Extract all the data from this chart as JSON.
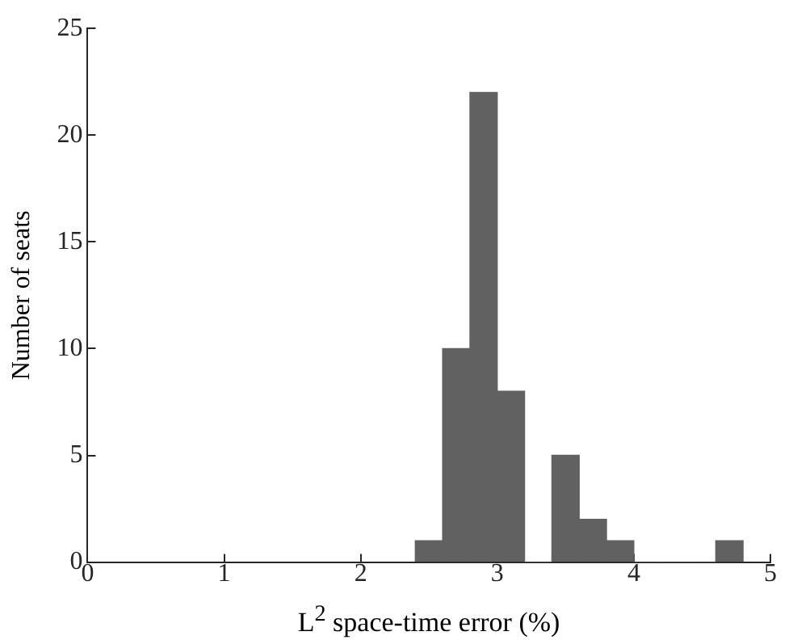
{
  "chart_data": {
    "type": "histogram",
    "xlabel": "L$^{2}$ space-time error (%)",
    "ylabel": "Number of seats",
    "bins": [
      2.4,
      2.6,
      2.8,
      3.0,
      3.2,
      3.4,
      3.6,
      3.8,
      4.0,
      4.2,
      4.4,
      4.6,
      4.8
    ],
    "values": [
      1,
      10,
      22,
      8,
      0,
      5,
      2,
      1,
      0,
      0,
      0,
      1
    ],
    "color": "#616161",
    "xlim": [
      0,
      5
    ],
    "xticks": [
      0,
      1,
      2,
      3,
      4,
      5
    ],
    "ylim": [
      0,
      25
    ],
    "yticks": [
      0,
      5,
      10,
      15,
      20,
      25
    ],
    "grid": false,
    "legend": false
  }
}
